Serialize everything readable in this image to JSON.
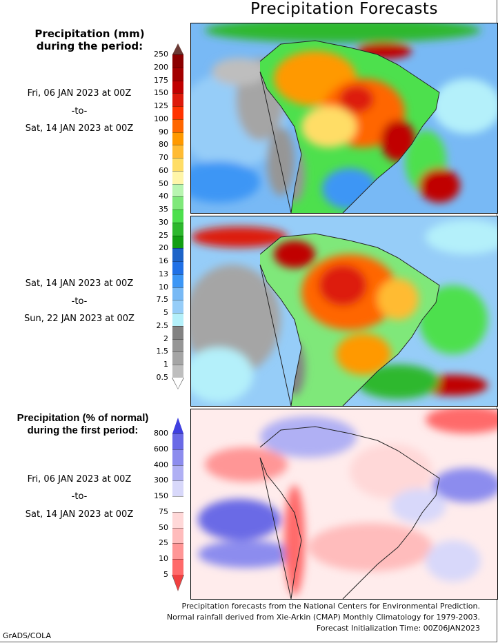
{
  "title": "Precipitation Forecasts",
  "panel1": {
    "header": [
      "Precipitation (mm)",
      "during the period:"
    ],
    "start": "Fri, 06 JAN 2023 at 00Z",
    "to": "-to-",
    "end": "Sat, 14 JAN 2023 at 00Z"
  },
  "panel2": {
    "start": "Sat, 14 JAN 2023 at 00Z",
    "to": "-to-",
    "end": "Sun, 22 JAN 2023 at 00Z"
  },
  "panel3": {
    "header": [
      "Precipitation (% of normal)",
      "during the first period:"
    ],
    "start": "Fri, 06 JAN 2023 at 00Z",
    "to": "-to-",
    "end": "Sat, 14 JAN 2023 at 00Z"
  },
  "precip_colorbar": {
    "labels": [
      "250",
      "200",
      "175",
      "150",
      "125",
      "100",
      "90",
      "80",
      "70",
      "60",
      "50",
      "40",
      "35",
      "30",
      "25",
      "20",
      "16",
      "13",
      "10",
      "7.5",
      "5",
      "2.5",
      "2",
      "1.5",
      "1",
      "0.5"
    ],
    "top_arrow_color": "#6b3a35",
    "bottom_arrow_color": "#ffffff",
    "colors": [
      "#8b0000",
      "#a30000",
      "#c00000",
      "#dd1a0a",
      "#ff3300",
      "#ff6600",
      "#ff9900",
      "#ffbb33",
      "#ffdd66",
      "#fff5a8",
      "#b8f5b0",
      "#7fe87a",
      "#4de04d",
      "#2db82d",
      "#129e12",
      "#1e64c8",
      "#2070e6",
      "#3c96f5",
      "#78b9f5",
      "#96cdf8",
      "#b4f0fa",
      "#828282",
      "#969696",
      "#a5a5a5",
      "#bebebe"
    ]
  },
  "percent_colorbar": {
    "labels": [
      "800",
      "600",
      "400",
      "300",
      "150",
      "75",
      "50",
      "25",
      "10",
      "5"
    ],
    "top_arrow_color": "#4040e0",
    "bottom_arrow_color": "#f04040",
    "colors": [
      "#6a6ae6",
      "#8c8cee",
      "#b0b0f4",
      "#d8d8fa",
      "#ffffff",
      "#ffd8d8",
      "#ffbcbc",
      "#ff9696",
      "#ff6a6a"
    ]
  },
  "footer": {
    "line1": "Precipitation forecasts from the National Centers for Environmental Prediction.",
    "line2": "Normal rainfall derived from Xie-Arkin (CMAP) Monthly Climatology for 1979-2003.",
    "line3": "Forecast Initialization Time: 00Z06JAN2023",
    "credit": "GrADS/COLA"
  }
}
